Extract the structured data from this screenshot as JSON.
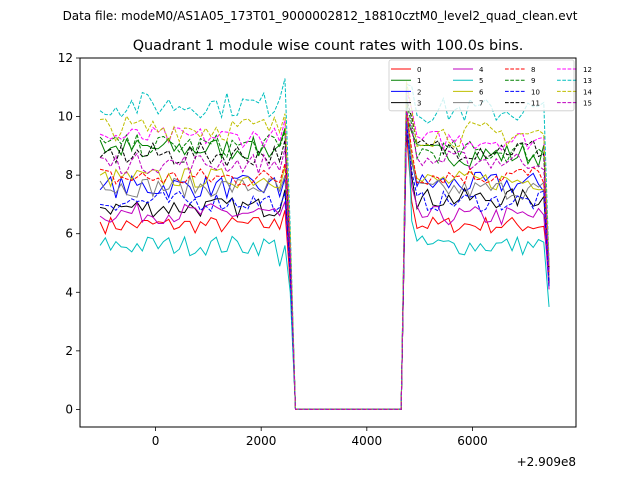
{
  "chart_data": {
    "type": "line",
    "suptitle": "Data file: modeM0/AS1A05_173T01_9000002812_18810cztM0_level2_quad_clean.evt",
    "title": "Quadrant 1 module wise count rates with 100.0s bins.",
    "xlabel": "",
    "ylabel": "",
    "offset_label": "+2.909e8",
    "xlim": [
      -1430,
      7960
    ],
    "ylim": [
      -0.6,
      12
    ],
    "xticks": [
      0,
      2000,
      4000,
      6000
    ],
    "xtick_labels": [
      "0",
      "2000",
      "4000",
      "6000"
    ],
    "yticks": [
      0,
      2,
      4,
      6,
      8,
      10,
      12
    ],
    "ytick_labels": [
      "0",
      "2",
      "4",
      "6",
      "8",
      "10",
      "12"
    ],
    "grid": false,
    "legend_position": "top-right",
    "x_start": -1050,
    "x_step": 100,
    "n_points": 86,
    "gap": {
      "from_index": 37,
      "to_index": 57,
      "value": 0
    },
    "series": [
      {
        "name": "0",
        "color": "#ff0000",
        "dash": "solid",
        "seg1_start": 6.4,
        "seg1_mean": 6.3,
        "seg1_end": 6.8,
        "seg1_dip": 4.3,
        "seg2_mean": 6.3,
        "seg2_peak": 9.5,
        "seg2_end": 4.7,
        "amp": 0.3
      },
      {
        "name": "1",
        "color": "#008000",
        "dash": "solid",
        "seg1_start": 9.2,
        "seg1_mean": 8.9,
        "seg1_end": 9.6,
        "seg1_dip": 5.4,
        "seg2_mean": 8.7,
        "seg2_peak": 10.0,
        "seg2_end": 4.8,
        "amp": 0.4
      },
      {
        "name": "2",
        "color": "#0000ff",
        "dash": "solid",
        "seg1_start": 7.5,
        "seg1_mean": 7.6,
        "seg1_end": 7.9,
        "seg1_dip": 5.0,
        "seg2_mean": 7.7,
        "seg2_peak": 9.7,
        "seg2_end": 4.4,
        "amp": 0.4
      },
      {
        "name": "3",
        "color": "#000000",
        "dash": "solid",
        "seg1_start": 6.9,
        "seg1_mean": 6.9,
        "seg1_end": 7.5,
        "seg1_dip": 4.6,
        "seg2_mean": 7.2,
        "seg2_peak": 9.6,
        "seg2_end": 4.3,
        "amp": 0.35
      },
      {
        "name": "4",
        "color": "#bf00bf",
        "dash": "solid",
        "seg1_start": 6.6,
        "seg1_mean": 6.7,
        "seg1_end": 7.1,
        "seg1_dip": 4.6,
        "seg2_mean": 6.6,
        "seg2_peak": 9.9,
        "seg2_end": 4.1,
        "amp": 0.35
      },
      {
        "name": "5",
        "color": "#00bfbf",
        "dash": "solid",
        "seg1_start": 5.6,
        "seg1_mean": 5.6,
        "seg1_end": 5.6,
        "seg1_dip": 4.0,
        "seg2_mean": 5.6,
        "seg2_peak": 11.0,
        "seg2_end": 3.5,
        "amp": 0.35
      },
      {
        "name": "6",
        "color": "#bfbf00",
        "dash": "solid",
        "seg1_start": 8.0,
        "seg1_mean": 7.9,
        "seg1_end": 8.3,
        "seg1_dip": 5.3,
        "seg2_mean": 7.8,
        "seg2_peak": 10.4,
        "seg2_end": 4.6,
        "amp": 0.35
      },
      {
        "name": "7",
        "color": "#808080",
        "dash": "solid",
        "seg1_start": 7.8,
        "seg1_mean": 7.6,
        "seg1_end": 8.0,
        "seg1_dip": 5.2,
        "seg2_mean": 7.5,
        "seg2_peak": 10.0,
        "seg2_end": 4.5,
        "amp": 0.35
      },
      {
        "name": "8",
        "color": "#ff0000",
        "dash": "dashed",
        "seg1_start": 8.2,
        "seg1_mean": 7.9,
        "seg1_end": 8.4,
        "seg1_dip": 5.3,
        "seg2_mean": 8.0,
        "seg2_peak": 10.2,
        "seg2_end": 4.6,
        "amp": 0.35
      },
      {
        "name": "9",
        "color": "#008000",
        "dash": "dashed",
        "seg1_start": 9.3,
        "seg1_mean": 9.0,
        "seg1_end": 9.5,
        "seg1_dip": 5.5,
        "seg2_mean": 8.8,
        "seg2_peak": 10.5,
        "seg2_end": 4.8,
        "amp": 0.4
      },
      {
        "name": "10",
        "color": "#0000ff",
        "dash": "dashed",
        "seg1_start": 7.0,
        "seg1_mean": 7.1,
        "seg1_end": 7.4,
        "seg1_dip": 4.7,
        "seg2_mean": 7.1,
        "seg2_peak": 9.8,
        "seg2_end": 4.2,
        "amp": 0.35
      },
      {
        "name": "11",
        "color": "#000000",
        "dash": "dashed",
        "seg1_start": 8.6,
        "seg1_mean": 8.7,
        "seg1_end": 9.2,
        "seg1_dip": 5.5,
        "seg2_mean": 8.9,
        "seg2_peak": 10.6,
        "seg2_end": 4.8,
        "amp": 0.4
      },
      {
        "name": "12",
        "color": "#ff00ff",
        "dash": "dashed",
        "seg1_start": 9.4,
        "seg1_mean": 9.3,
        "seg1_end": 9.9,
        "seg1_dip": 5.8,
        "seg2_mean": 9.2,
        "seg2_peak": 10.9,
        "seg2_end": 4.9,
        "amp": 0.35
      },
      {
        "name": "13",
        "color": "#00bfbf",
        "dash": "dashed",
        "seg1_start": 10.2,
        "seg1_mean": 10.4,
        "seg1_end": 11.3,
        "seg1_dip": 6.2,
        "seg2_mean": 10.2,
        "seg2_peak": 11.1,
        "seg2_end": 5.0,
        "amp": 0.45
      },
      {
        "name": "14",
        "color": "#bfbf00",
        "dash": "dashed",
        "seg1_start": 9.9,
        "seg1_mean": 9.6,
        "seg1_end": 10.1,
        "seg1_dip": 5.9,
        "seg2_mean": 9.4,
        "seg2_peak": 11.2,
        "seg2_end": 4.9,
        "amp": 0.45
      },
      {
        "name": "15",
        "color": "#bf00bf",
        "dash": "dashed",
        "seg1_start": 8.6,
        "seg1_mean": 8.4,
        "seg1_end": 8.9,
        "seg1_dip": 5.4,
        "seg2_mean": 8.5,
        "seg2_peak": 10.2,
        "seg2_end": 4.7,
        "amp": 0.35
      }
    ]
  }
}
